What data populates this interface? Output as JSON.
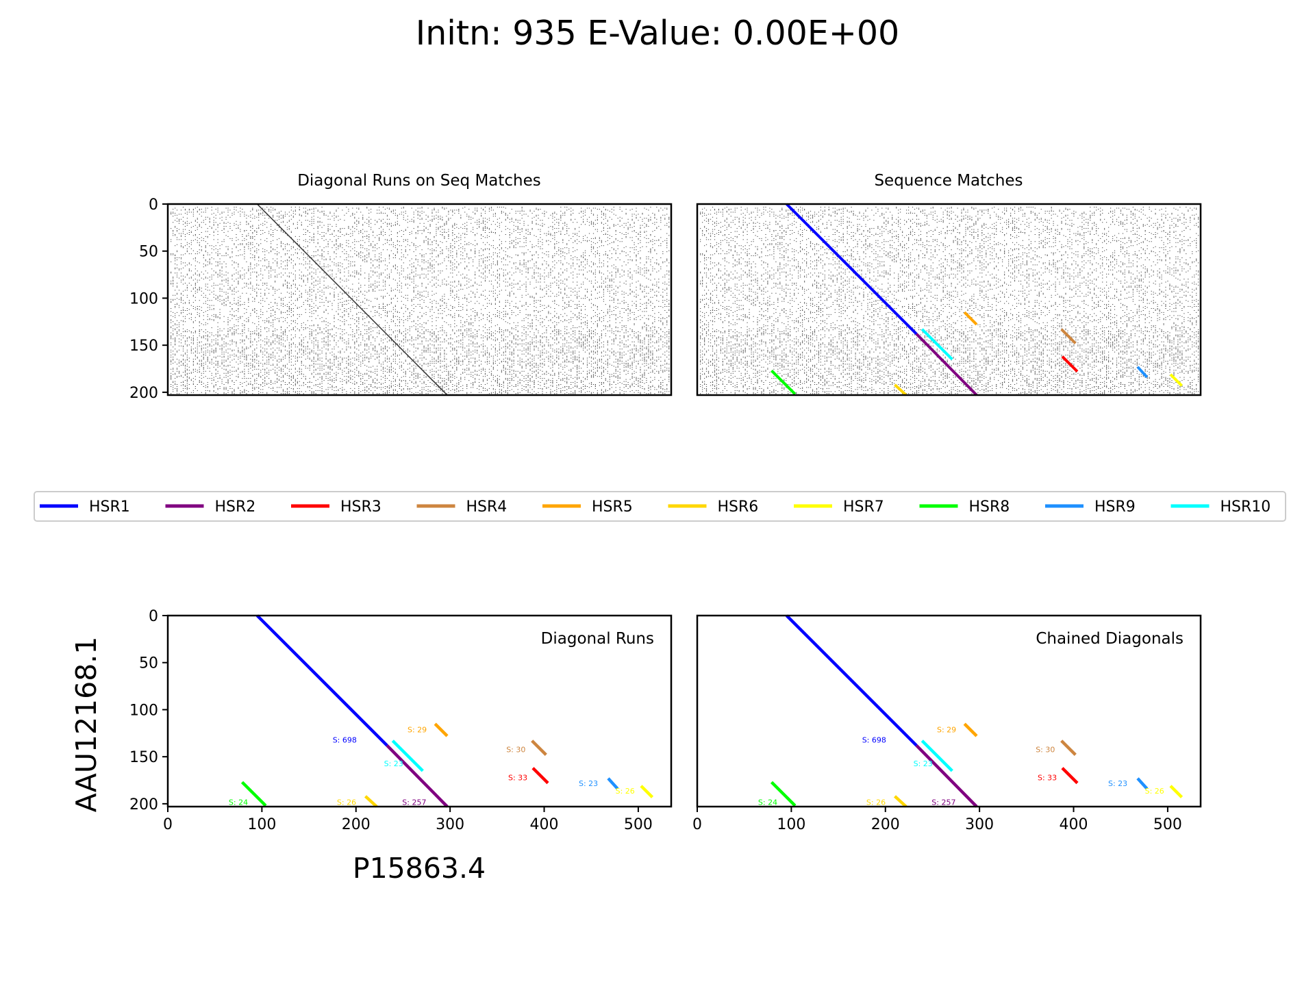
{
  "figure": {
    "title": "Initn:   935     E-Value:  0.00E+00",
    "xlabel": "P15863.4",
    "ylabel": "AAU12168.1"
  },
  "legend": [
    {
      "name": "HSR1",
      "color": "#0000ff"
    },
    {
      "name": "HSR2",
      "color": "#800080"
    },
    {
      "name": "HSR3",
      "color": "#ff0000"
    },
    {
      "name": "HSR4",
      "color": "#cd853f"
    },
    {
      "name": "HSR5",
      "color": "#ffa500"
    },
    {
      "name": "HSR6",
      "color": "#ffd700"
    },
    {
      "name": "HSR7",
      "color": "#ffff00"
    },
    {
      "name": "HSR8",
      "color": "#00ff00"
    },
    {
      "name": "HSR9",
      "color": "#1e90ff"
    },
    {
      "name": "HSR10",
      "color": "#00ffff"
    }
  ],
  "chart_data": [
    {
      "type": "scatter",
      "title": "Diagonal Runs on Seq Matches",
      "xlim": [
        0,
        535
      ],
      "ylim": [
        0,
        203
      ],
      "y_inverted": true,
      "yticks": [
        0,
        50,
        100,
        150,
        200
      ],
      "x_ticks_shown": false,
      "content": "dot plot of sequence matches with diagonal runs overlaid as thin black lines",
      "diagonal_line": {
        "x": [
          95,
          297
        ],
        "y": [
          0,
          203
        ]
      }
    },
    {
      "type": "scatter",
      "title": "Sequence Matches",
      "xlim": [
        0,
        535
      ],
      "ylim": [
        0,
        203
      ],
      "y_inverted": true,
      "x_ticks_shown": false,
      "y_ticks_shown": false,
      "content": "dot plot of sequence matches with HSR segments overlaid",
      "show_labels": false
    },
    {
      "type": "line",
      "annotation": "Diagonal Runs",
      "xlim": [
        0,
        535
      ],
      "ylim": [
        0,
        203
      ],
      "y_inverted": true,
      "xticks": [
        0,
        100,
        200,
        300,
        400,
        500
      ],
      "yticks": [
        0,
        50,
        100,
        150,
        200
      ],
      "show_labels": true
    },
    {
      "type": "line",
      "annotation": "Chained Diagonals",
      "xlim": [
        0,
        535
      ],
      "ylim": [
        0,
        203
      ],
      "y_inverted": true,
      "xticks": [
        0,
        100,
        200,
        300,
        400,
        500
      ],
      "show_labels": true
    }
  ],
  "segments": [
    {
      "name": "HSR1",
      "color": "#0000ff",
      "x": [
        95,
        233
      ],
      "y": [
        0,
        138
      ],
      "label": "S: 698",
      "label_x": 188,
      "label_y": 135
    },
    {
      "name": "HSR2",
      "color": "#800080",
      "x": [
        233,
        297
      ],
      "y": [
        138,
        203
      ],
      "label": "S: 257",
      "label_x": 262,
      "label_y": 201
    },
    {
      "name": "HSR3",
      "color": "#ff0000",
      "x": [
        388,
        404
      ],
      "y": [
        162,
        178
      ],
      "label": "S: 33",
      "label_x": 372,
      "label_y": 175
    },
    {
      "name": "HSR4",
      "color": "#cd853f",
      "x": [
        387,
        402
      ],
      "y": [
        133,
        148
      ],
      "label": "S: 30",
      "label_x": 370,
      "label_y": 145
    },
    {
      "name": "HSR5",
      "color": "#ffa500",
      "x": [
        284,
        297
      ],
      "y": [
        115,
        128
      ],
      "label": "S: 29",
      "label_x": 265,
      "label_y": 124
    },
    {
      "name": "HSR6",
      "color": "#ffd700",
      "x": [
        210,
        222
      ],
      "y": [
        192,
        203
      ],
      "label": "S: 26",
      "label_x": 190,
      "label_y": 201
    },
    {
      "name": "HSR7",
      "color": "#ffff00",
      "x": [
        503,
        515
      ],
      "y": [
        181,
        193
      ],
      "label": "S: 26",
      "label_x": 486,
      "label_y": 189
    },
    {
      "name": "HSR8",
      "color": "#00ff00",
      "x": [
        79,
        104
      ],
      "y": [
        177,
        202
      ],
      "label": "S: 24",
      "label_x": 75,
      "label_y": 201
    },
    {
      "name": "HSR9",
      "color": "#1e90ff",
      "x": [
        468,
        478
      ],
      "y": [
        173,
        184
      ],
      "label": "S: 23",
      "label_x": 447,
      "label_y": 181
    },
    {
      "name": "HSR10",
      "color": "#00ffff",
      "x": [
        239,
        271
      ],
      "y": [
        133,
        165
      ],
      "label": "S: 23",
      "label_x": 240,
      "label_y": 160
    }
  ]
}
